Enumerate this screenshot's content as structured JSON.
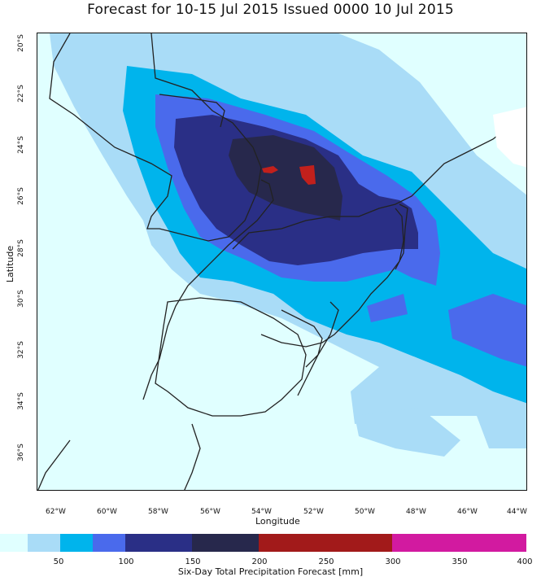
{
  "title": "Forecast for 10-15 Jul 2015 Issued 0000 10 Jul 2015",
  "map": {
    "xlabel": "Longitude",
    "ylabel": "Latitude",
    "lon_ticks": [
      "62°W",
      "60°W",
      "58°W",
      "56°W",
      "54°W",
      "52°W",
      "50°W",
      "48°W",
      "46°W",
      "44°W"
    ],
    "lat_ticks": [
      "20°S",
      "22°S",
      "24°S",
      "26°S",
      "28°S",
      "30°S",
      "32°S",
      "34°S",
      "36°S"
    ],
    "background_color": "#e0ffff",
    "land_outline_color": "#222222"
  },
  "colorbar": {
    "title": "Six-Day Total Precipitation Forecast [mm]",
    "labels": [
      "50",
      "100",
      "150",
      "200",
      "250",
      "300",
      "350",
      "400"
    ],
    "colors": [
      "#e0ffff",
      "#a9dcf7",
      "#00b4ec",
      "#4a6aec",
      "#2a2f86",
      "#27284c",
      "#a21a1a",
      "#a21a1a",
      "#d21aa0",
      "#d21aa0"
    ]
  },
  "chart_data": {
    "type": "filled-contour-map",
    "title": "Forecast for 10-15 Jul 2015 Issued 0000 10 Jul 2015",
    "xlabel": "Longitude",
    "ylabel": "Latitude",
    "xlim_deg_west": [
      63,
      43.8
    ],
    "ylim_deg_south": [
      19.7,
      37.6
    ],
    "legend_title": "Six-Day Total Precipitation Forecast [mm]",
    "contour_levels_mm": [
      0,
      25,
      50,
      75,
      100,
      125,
      150,
      200,
      250,
      300,
      350,
      400
    ],
    "max_region": "red (>200 mm) cells near 24.9°S 53.5°W and 25.1°S 52.1°W"
  }
}
